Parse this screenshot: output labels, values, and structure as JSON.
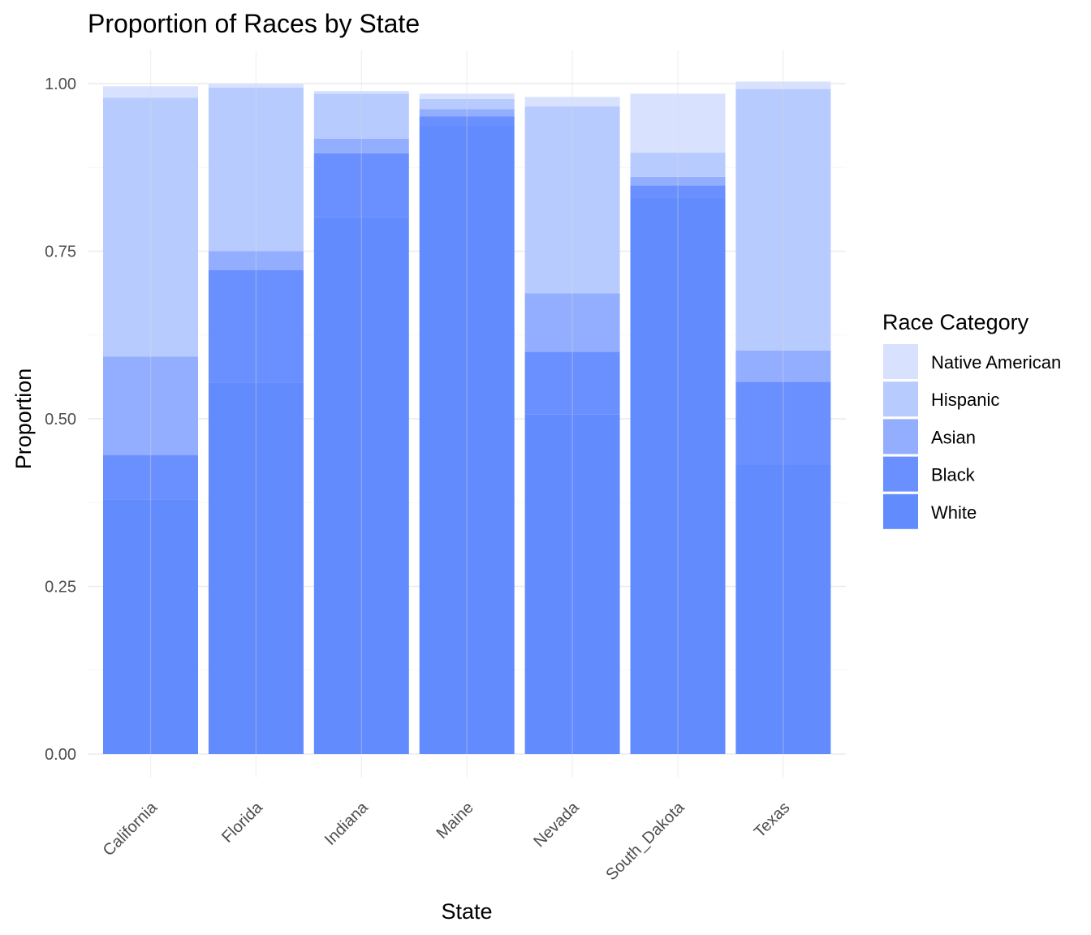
{
  "chart_data": {
    "type": "bar",
    "stacked": true,
    "title": "Proportion of Races by State",
    "xlabel": "State",
    "ylabel": "Proportion",
    "ylim": [
      0,
      1.0
    ],
    "yticks": [
      "0.00",
      "0.25",
      "0.50",
      "0.75",
      "1.00"
    ],
    "ytick_values": [
      0,
      0.25,
      0.5,
      0.75,
      1.0
    ],
    "categories": [
      "California",
      "Florida",
      "Indiana",
      "Maine",
      "Nevada",
      "South_Dakota",
      "Texas"
    ],
    "series": [
      {
        "name": "White",
        "color": "#628BFE",
        "values": [
          0.38,
          0.554,
          0.801,
          0.937,
          0.507,
          0.83,
          0.431
        ]
      },
      {
        "name": "Black",
        "color": "#6990FE",
        "values": [
          0.066,
          0.168,
          0.095,
          0.014,
          0.093,
          0.018,
          0.124
        ]
      },
      {
        "name": "Asian",
        "color": "#93AEFE",
        "values": [
          0.147,
          0.028,
          0.022,
          0.011,
          0.087,
          0.013,
          0.047
        ]
      },
      {
        "name": "Hispanic",
        "color": "#B8CBFE",
        "values": [
          0.386,
          0.244,
          0.067,
          0.015,
          0.279,
          0.036,
          0.39
        ]
      },
      {
        "name": "Native American",
        "color": "#D8E2FE",
        "values": [
          0.017,
          0.006,
          0.004,
          0.008,
          0.014,
          0.088,
          0.011
        ]
      }
    ],
    "legend": {
      "title": "Race Category",
      "position": "right",
      "order": [
        "Native American",
        "Hispanic",
        "Asian",
        "Black",
        "White"
      ]
    },
    "grid": true,
    "x_tick_rotation": -45
  }
}
